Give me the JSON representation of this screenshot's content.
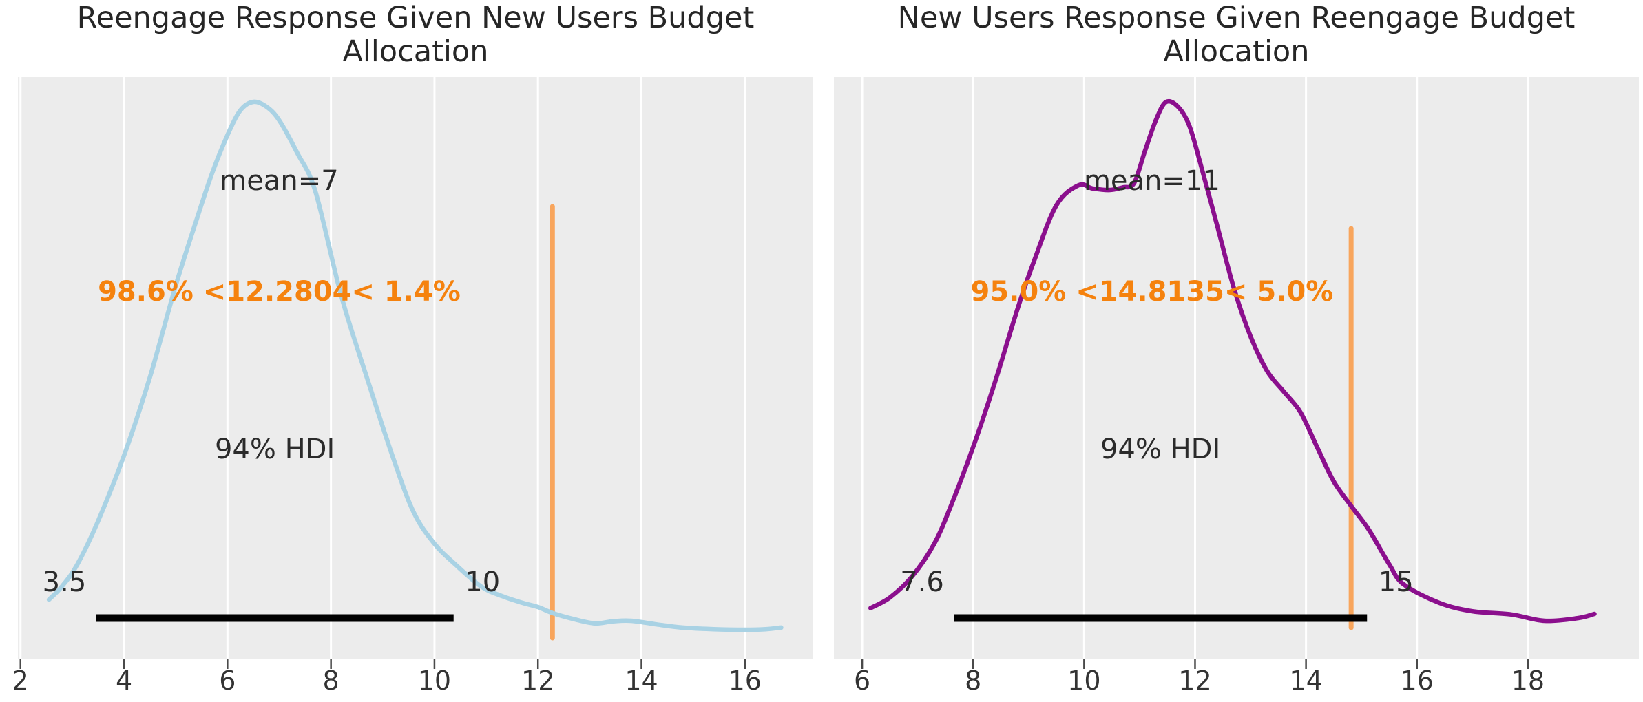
{
  "figure": {
    "background": "#ffffff",
    "axes_background": "#ececec",
    "grid_color": "#ffffff",
    "title_color": "#262626",
    "tick_label_color": "#333333",
    "annotation_color": "#2b2b2b"
  },
  "chart_data": [
    {
      "type": "line",
      "kind": "kde-posterior-density",
      "title": "Reengage Response Given New Users Budget Allocation",
      "curve_color": "#a9d2e4",
      "ref_line_color": "#f8a55c",
      "ref_text_color": "#f5820e",
      "hdi_bar_color": "#000000",
      "xlim": [
        1.95,
        17.32
      ],
      "x_ticks": [
        2,
        4,
        6,
        8,
        10,
        12,
        14,
        16
      ],
      "x_tick_labels": [
        "2",
        "4",
        "6",
        "8",
        "10",
        "12",
        "14",
        "16"
      ],
      "grid": "vertical-only",
      "legend": "none",
      "mean": 7,
      "mean_label": "mean=7",
      "ref_val": {
        "value": 12.2804,
        "pct_below": 98.6,
        "pct_above": 1.4,
        "label": "98.6% <12.2804< 1.4%"
      },
      "hdi": {
        "probability": "94%",
        "label": "94% HDI",
        "lower": 3.46,
        "upper": 10.37,
        "lower_label": "3.5",
        "upper_label": "10"
      },
      "kde_x": [
        2.55,
        2.8,
        3.1,
        3.5,
        4.0,
        4.5,
        5.0,
        5.4,
        5.7,
        6.0,
        6.25,
        6.5,
        6.75,
        7.0,
        7.35,
        7.7,
        8.2,
        8.7,
        9.2,
        9.6,
        10.0,
        10.4,
        10.9,
        11.3,
        11.7,
        12.0,
        12.3,
        12.7,
        13.1,
        13.45,
        13.8,
        14.3,
        14.8,
        15.4,
        16.0,
        16.4,
        16.7
      ],
      "kde_density": [
        0.057,
        0.082,
        0.124,
        0.206,
        0.33,
        0.478,
        0.652,
        0.776,
        0.864,
        0.937,
        0.984,
        1.0,
        0.991,
        0.965,
        0.903,
        0.83,
        0.632,
        0.476,
        0.326,
        0.222,
        0.163,
        0.124,
        0.082,
        0.064,
        0.051,
        0.043,
        0.031,
        0.02,
        0.012,
        0.016,
        0.017,
        0.01,
        0.004,
        0.001,
        0.0,
        0.001,
        0.004
      ]
    },
    {
      "type": "line",
      "kind": "kde-posterior-density",
      "title": "New Users Response Given Reengage Budget Allocation",
      "curve_color": "#8b0f8d",
      "ref_line_color": "#f8a55c",
      "ref_text_color": "#f5820e",
      "hdi_bar_color": "#000000",
      "xlim": [
        5.49,
        20.0
      ],
      "x_ticks": [
        6,
        8,
        10,
        12,
        14,
        16,
        18
      ],
      "x_tick_labels": [
        "6",
        "8",
        "10",
        "12",
        "14",
        "16",
        "18"
      ],
      "grid": "vertical-only",
      "legend": "none",
      "mean": 11,
      "mean_label": "mean=11",
      "ref_val": {
        "value": 14.8135,
        "pct_below": 95.0,
        "pct_above": 5.0,
        "label": "95.0% <14.8135< 5.0%"
      },
      "hdi": {
        "probability": "94%",
        "label": "94% HDI",
        "lower": 7.65,
        "upper": 15.1,
        "lower_label": "7.6",
        "upper_label": "15"
      },
      "kde_x": [
        6.15,
        6.5,
        6.9,
        7.3,
        7.6,
        8.0,
        8.4,
        8.8,
        9.1,
        9.5,
        9.9,
        10.15,
        10.45,
        10.7,
        10.9,
        11.1,
        11.3,
        11.48,
        11.7,
        11.9,
        12.1,
        12.4,
        12.7,
        13.0,
        13.3,
        13.6,
        13.9,
        14.2,
        14.5,
        14.81,
        15.13,
        15.5,
        15.76,
        16.4,
        17.0,
        17.7,
        18.3,
        18.9,
        19.2
      ],
      "kde_density": [
        0.041,
        0.061,
        0.101,
        0.163,
        0.235,
        0.346,
        0.471,
        0.608,
        0.699,
        0.804,
        0.842,
        0.836,
        0.833,
        0.838,
        0.846,
        0.908,
        0.967,
        1.0,
        0.99,
        0.954,
        0.882,
        0.765,
        0.647,
        0.556,
        0.49,
        0.451,
        0.412,
        0.346,
        0.281,
        0.235,
        0.19,
        0.124,
        0.086,
        0.051,
        0.035,
        0.029,
        0.017,
        0.022,
        0.03
      ]
    }
  ]
}
